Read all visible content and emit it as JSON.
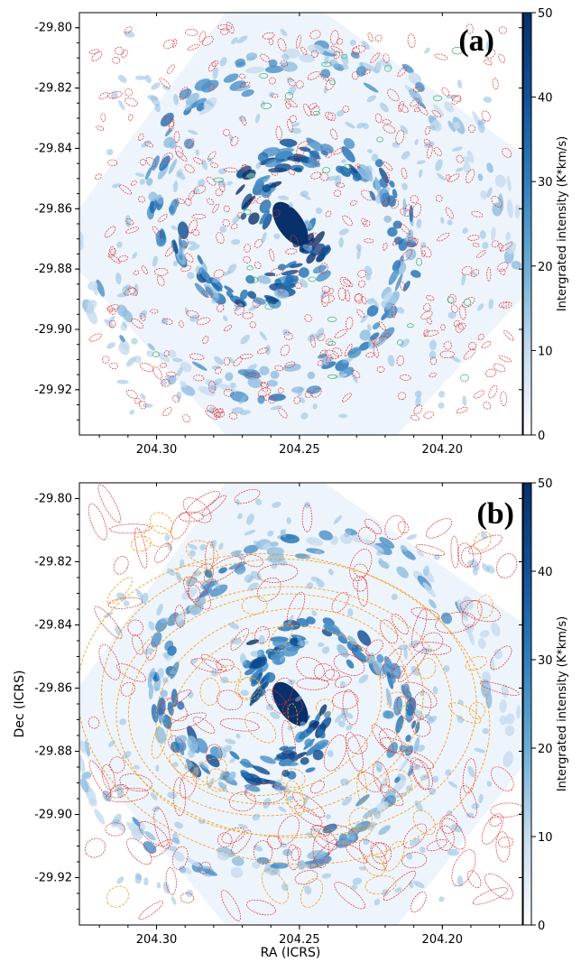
{
  "chart_data": [
    {
      "type": "heatmap",
      "panel_label": "(a)",
      "xlabel": "",
      "ylabel": "",
      "x_ticks": [
        "204.30",
        "204.25",
        "204.20"
      ],
      "y_ticks": [
        "-29.80",
        "-29.82",
        "-29.84",
        "-29.86",
        "-29.88",
        "-29.90",
        "-29.92"
      ],
      "x_tick_values": [
        204.3,
        204.25,
        204.2
      ],
      "y_tick_values": [
        -29.8,
        -29.82,
        -29.84,
        -29.86,
        -29.88,
        -29.9,
        -29.92
      ],
      "xlim": [
        204.327,
        204.172
      ],
      "ylim": [
        -29.935,
        -29.795
      ],
      "colorbar": {
        "label": "Intergrated intensity (K*km/s)",
        "ticks": [
          "50",
          "40",
          "30",
          "20",
          "10",
          "0"
        ],
        "tick_values": [
          50,
          40,
          30,
          20,
          10,
          0
        ],
        "range": [
          0,
          50
        ],
        "colormap": "Blues"
      },
      "overlay_contours": [
        "#e03030",
        "#3cb371"
      ]
    },
    {
      "type": "heatmap",
      "panel_label": "(b)",
      "xlabel": "RA (ICRS)",
      "ylabel": "Dec (ICRS)",
      "x_ticks": [
        "204.30",
        "204.25",
        "204.20"
      ],
      "y_ticks": [
        "-29.80",
        "-29.82",
        "-29.84",
        "-29.86",
        "-29.88",
        "-29.90",
        "-29.92"
      ],
      "x_tick_values": [
        204.3,
        204.25,
        204.2
      ],
      "y_tick_values": [
        -29.8,
        -29.82,
        -29.84,
        -29.86,
        -29.88,
        -29.9,
        -29.92
      ],
      "xlim": [
        204.327,
        204.172
      ],
      "ylim": [
        -29.935,
        -29.795
      ],
      "colorbar": {
        "label": "Intergrated intensity (K*km/s)",
        "ticks": [
          "50",
          "40",
          "30",
          "20",
          "10",
          "0"
        ],
        "tick_values": [
          50,
          40,
          30,
          20,
          10,
          0
        ],
        "range": [
          0,
          50
        ],
        "colormap": "Blues"
      },
      "overlay_contours": [
        "#e03030",
        "#f0a020"
      ]
    }
  ],
  "colors": {
    "map_dark": "#08306b",
    "map_mid": "#4a90c8",
    "map_light": "#deebf7",
    "contour_red": "#e03030",
    "contour_orange": "#f0a020",
    "contour_green": "#3cb371"
  }
}
